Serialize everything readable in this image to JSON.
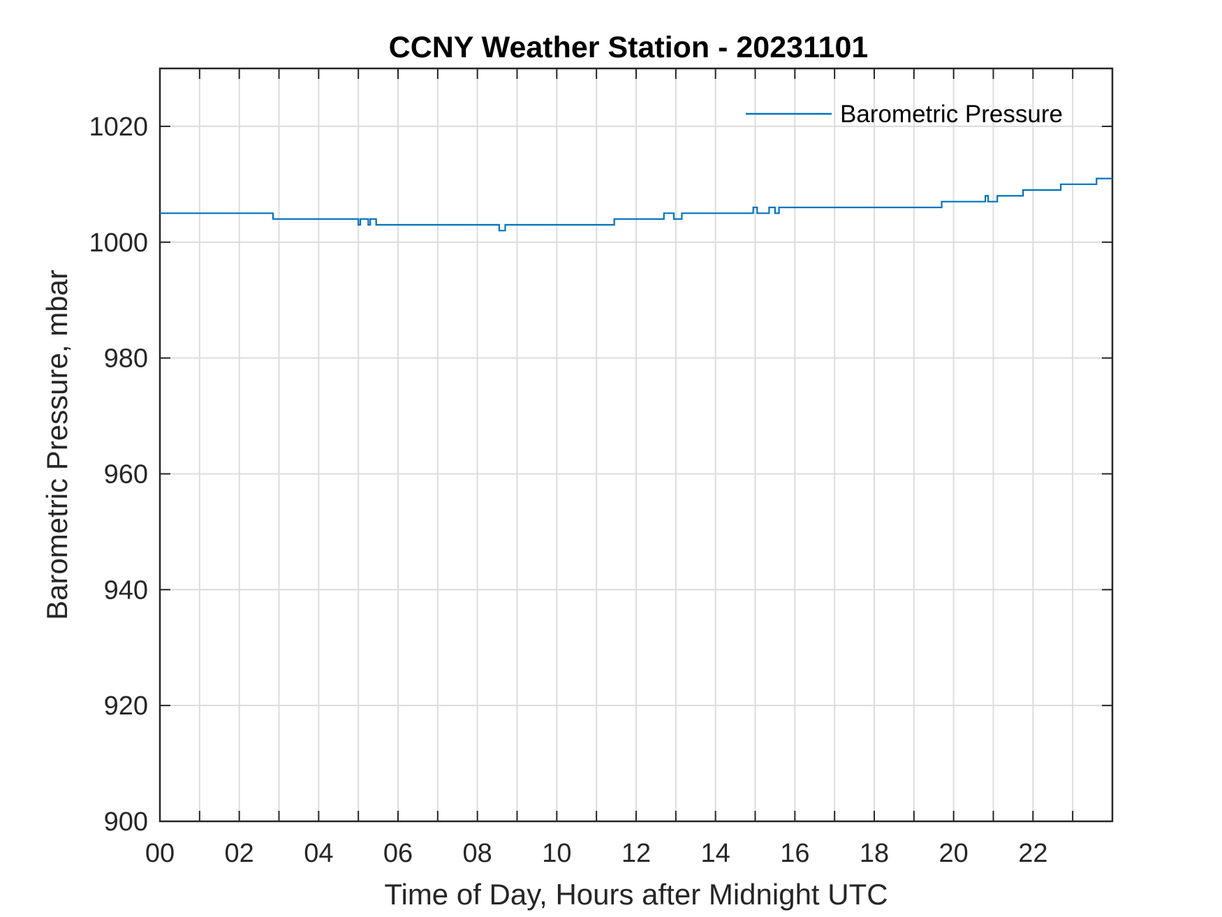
{
  "colors": {
    "series": "#0072bd",
    "grid": "#dcdcdc",
    "axis": "#262626",
    "background": "#ffffff"
  },
  "chart_data": {
    "type": "line",
    "title": "CCNY Weather Station - 20231101",
    "xlabel": "Time of Day, Hours after Midnight UTC",
    "ylabel": "Barometric Pressure, mbar",
    "xlim": [
      0,
      24
    ],
    "ylim": [
      900,
      1030
    ],
    "xticks": [
      0,
      2,
      4,
      6,
      8,
      10,
      12,
      14,
      16,
      18,
      20,
      22
    ],
    "xtick_labels": [
      "00",
      "02",
      "04",
      "06",
      "08",
      "10",
      "12",
      "14",
      "16",
      "18",
      "20",
      "22"
    ],
    "yticks": [
      900,
      920,
      940,
      960,
      980,
      1000,
      1020
    ],
    "ytick_labels": [
      "900",
      "920",
      "940",
      "960",
      "980",
      "1000",
      "1020"
    ],
    "grid": true,
    "minor_x_grid_step": 1,
    "legend": {
      "position": "top-right",
      "entries": [
        "Barometric Pressure"
      ]
    },
    "series": [
      {
        "name": "Barometric Pressure",
        "step": "post",
        "x": [
          0,
          2.85,
          5.0,
          5.05,
          5.1,
          5.25,
          5.3,
          5.45,
          5.5,
          8.55,
          8.7,
          11.45,
          12.7,
          12.95,
          13.15,
          14.95,
          15.05,
          15.35,
          15.5,
          15.6,
          19.7,
          20.8,
          20.87,
          20.95,
          21.1,
          21.75,
          22.7,
          23.6,
          24.0
        ],
        "values": [
          1005,
          1004,
          1003,
          1004,
          1004,
          1003,
          1004,
          1003,
          1003,
          1002,
          1003,
          1004,
          1005,
          1004,
          1005,
          1006,
          1005,
          1006,
          1005,
          1006,
          1007,
          1008,
          1007,
          1007,
          1008,
          1009,
          1010,
          1011,
          1011
        ]
      }
    ]
  }
}
